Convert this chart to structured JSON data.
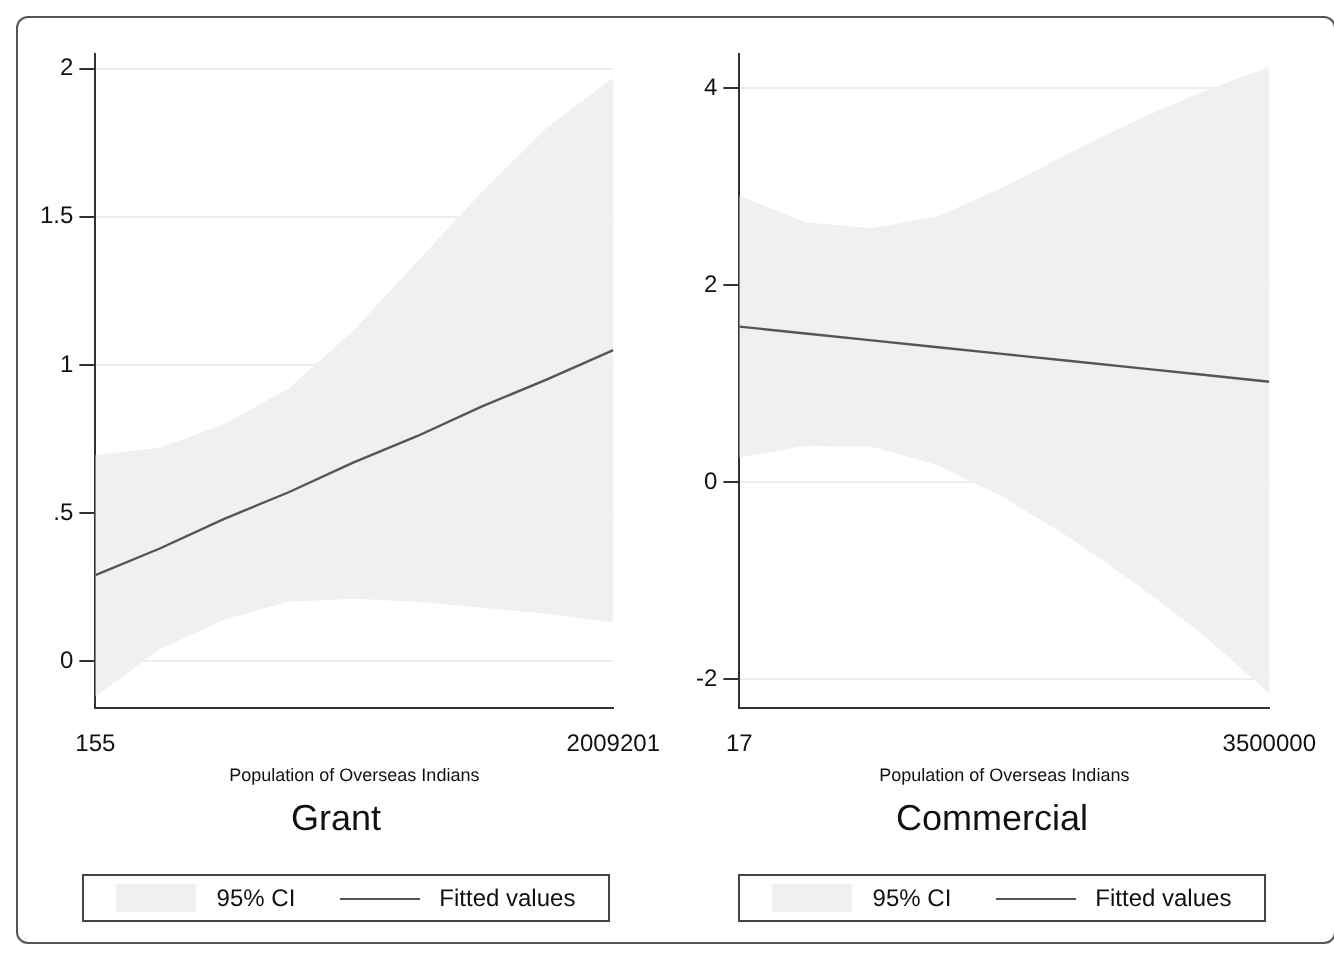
{
  "chart_data": [
    {
      "type": "line",
      "title": "Grant",
      "xlabel": "Population of Overseas Indians",
      "xlim": [
        155,
        2009201
      ],
      "xticks": [
        155,
        2009201
      ],
      "ylim": [
        -0.16,
        2.05
      ],
      "yticks": [
        0,
        {
          "value": 0.5,
          "label": ".5"
        },
        1,
        1.5,
        2
      ],
      "grid": "y",
      "legend": "bottom",
      "marker": "none",
      "annotations": [
        "95% CI"
      ],
      "series": [
        {
          "name": "Fitted values",
          "type": "line",
          "color": "#555555",
          "x": [
            155,
            250000,
            500000,
            750000,
            1000000,
            1250000,
            1500000,
            1750000,
            2009201
          ],
          "values": [
            0.29,
            0.38,
            0.48,
            0.57,
            0.67,
            0.76,
            0.86,
            0.95,
            1.05
          ],
          "lower": [
            -0.12,
            0.04,
            0.14,
            0.2,
            0.21,
            0.2,
            0.18,
            0.16,
            0.13
          ],
          "upper": [
            0.695,
            0.72,
            0.8,
            0.92,
            1.115,
            1.35,
            1.585,
            1.8,
            1.97
          ]
        }
      ]
    },
    {
      "type": "line",
      "title": "Commercial",
      "xlabel": "Population of Overseas Indians",
      "xlim": [
        17,
        3500000
      ],
      "xticks": [
        17,
        3500000
      ],
      "ylim": [
        -2.3,
        4.35
      ],
      "yticks": [
        -2,
        0,
        2,
        4
      ],
      "grid": "y",
      "legend": "bottom",
      "marker": "none",
      "annotations": [
        "95% CI"
      ],
      "series": [
        {
          "name": "Fitted values",
          "type": "line",
          "color": "#555555",
          "x": [
            17,
            437500,
            875000,
            1312500,
            1750000,
            2187500,
            2625000,
            3062500,
            3500000
          ],
          "values": [
            1.58,
            1.51,
            1.44,
            1.37,
            1.3,
            1.23,
            1.16,
            1.09,
            1.02
          ],
          "lower": [
            0.25,
            0.37,
            0.36,
            0.17,
            -0.16,
            -0.57,
            -1.04,
            -1.55,
            -2.15
          ],
          "upper": [
            2.91,
            2.64,
            2.58,
            2.7,
            3.0,
            3.35,
            3.68,
            3.97,
            4.22
          ]
        }
      ]
    }
  ]
}
